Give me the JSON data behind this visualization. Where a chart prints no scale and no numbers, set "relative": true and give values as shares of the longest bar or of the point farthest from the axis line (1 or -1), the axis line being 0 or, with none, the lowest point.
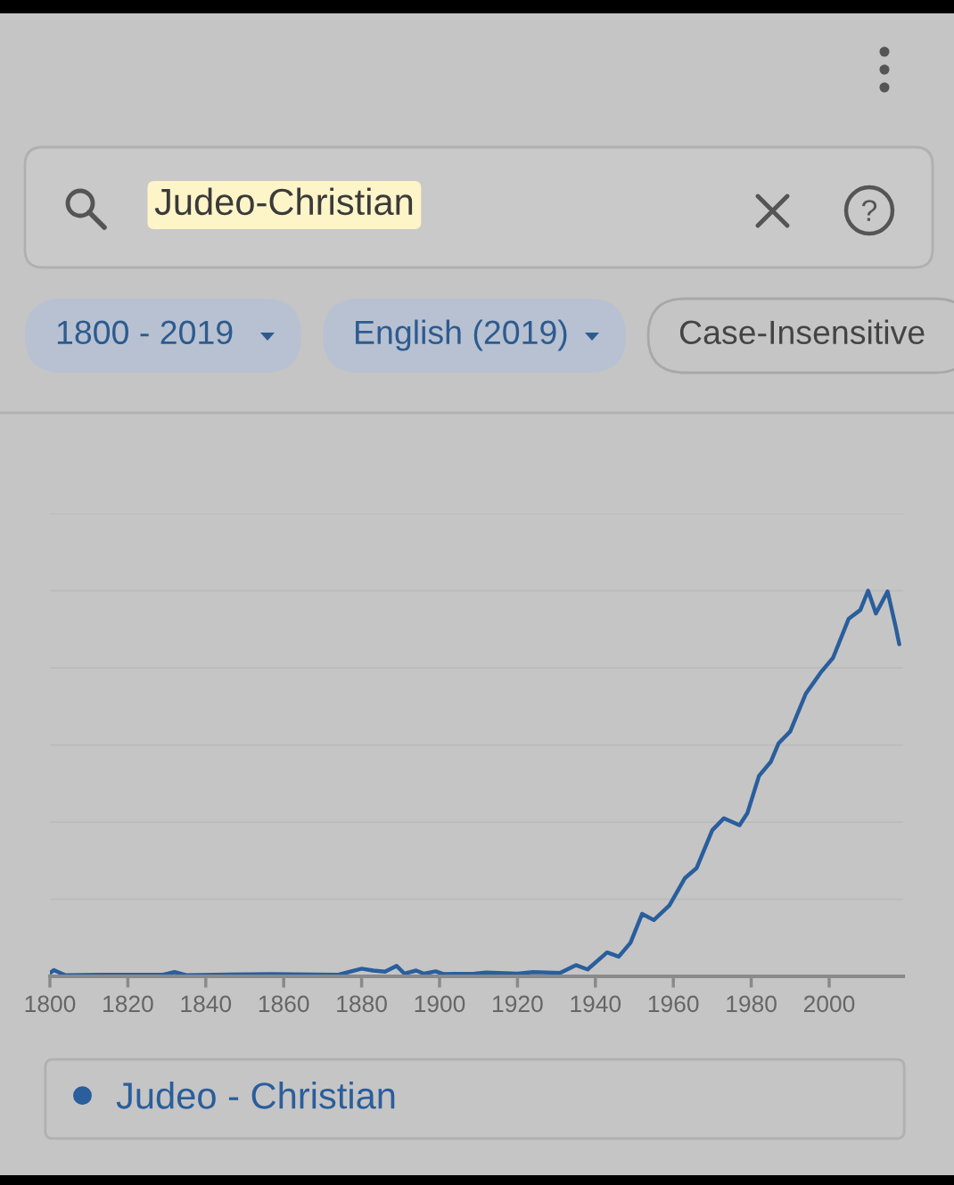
{
  "chart_data": {
    "type": "line",
    "title": "Judeo-Christian",
    "annotations": [
      "1800 - 2019",
      "English (2019)",
      "Case-Insensitive"
    ],
    "relative": true,
    "xlim": [
      1800,
      2019
    ],
    "xticks": [
      1800,
      1820,
      1840,
      1860,
      1880,
      1900,
      1920,
      1940,
      1960,
      1980,
      2000
    ],
    "grid": "y",
    "legend": "bottom",
    "tick_labels": "x",
    "x": [
      1800,
      1801,
      1804,
      1813,
      1829,
      1832,
      1835,
      1857,
      1874,
      1880,
      1883,
      1886,
      1889,
      1891,
      1894,
      1896,
      1899,
      1901,
      1909,
      1912,
      1920,
      1924,
      1931,
      1935,
      1938,
      1943,
      1946,
      1949,
      1952,
      1955,
      1959,
      1963,
      1966,
      1970,
      1973,
      1977,
      1979,
      1982,
      1985,
      1987,
      1990,
      1994,
      1998,
      2001,
      2005,
      2008,
      2010,
      2012,
      2015,
      2017,
      2018
    ],
    "series": [
      {
        "name": "Judeo - Christian",
        "color": "#2a5e9c",
        "values": [
          0.009,
          0.016,
          0.003,
          0.004,
          0.004,
          0.011,
          0.003,
          0.006,
          0.004,
          0.02,
          0.015,
          0.012,
          0.027,
          0.007,
          0.015,
          0.007,
          0.013,
          0.006,
          0.007,
          0.01,
          0.007,
          0.011,
          0.009,
          0.029,
          0.018,
          0.062,
          0.051,
          0.087,
          0.162,
          0.146,
          0.184,
          0.255,
          0.281,
          0.379,
          0.41,
          0.392,
          0.423,
          0.52,
          0.556,
          0.604,
          0.635,
          0.733,
          0.79,
          0.826,
          0.927,
          0.95,
          1.0,
          0.941,
          0.998,
          0.91,
          0.861
        ]
      }
    ]
  }
}
